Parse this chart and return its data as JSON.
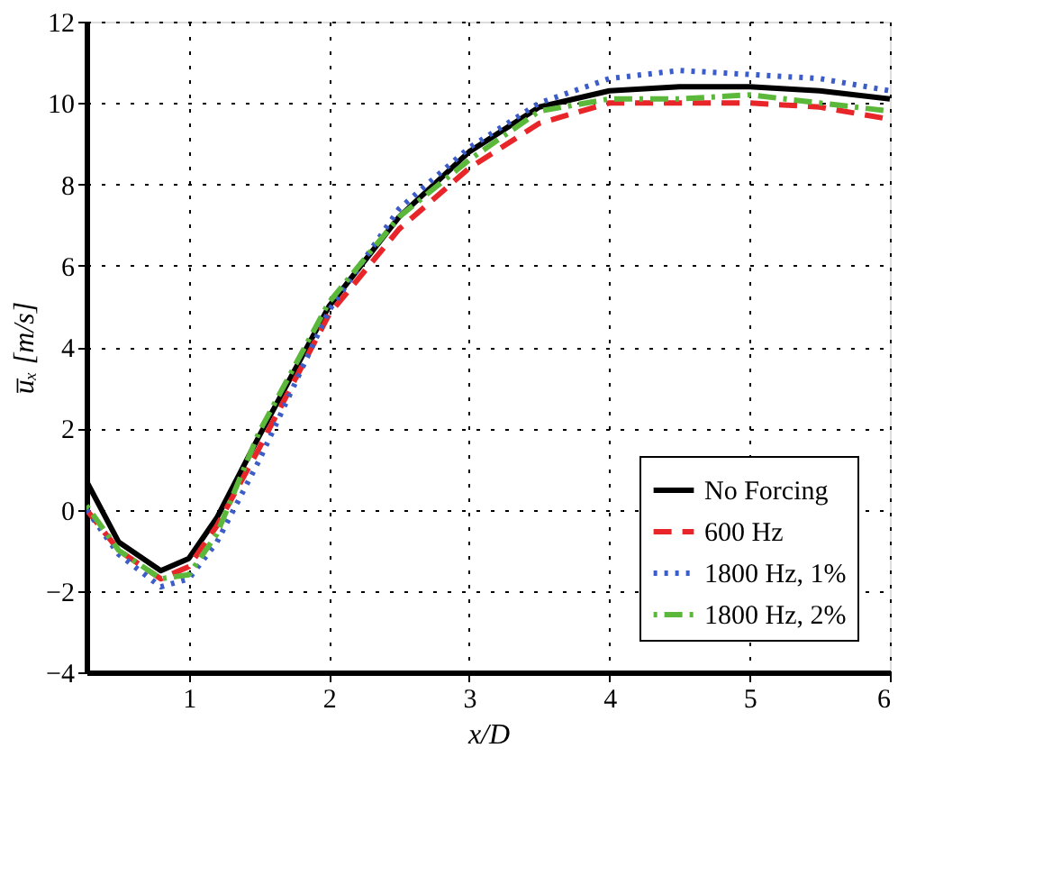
{
  "chart_data": {
    "type": "line",
    "xlabel": "x/D",
    "ylabel": "u̅ₓ [m/s]",
    "x": [
      0.27,
      0.5,
      0.8,
      1.0,
      1.2,
      1.5,
      2.0,
      2.5,
      3.0,
      3.5,
      4.0,
      4.5,
      5.0,
      5.5,
      6.0
    ],
    "series": [
      {
        "name": "No Forcing",
        "color": "#000000",
        "line_style": "solid",
        "values": [
          0.7,
          -0.8,
          -1.5,
          -1.2,
          -0.2,
          1.8,
          5.0,
          7.2,
          8.8,
          9.9,
          10.3,
          10.4,
          10.4,
          10.3,
          10.1
        ]
      },
      {
        "name": "600 Hz",
        "color": "#e8262a",
        "line_style": "dashed",
        "values": [
          0.0,
          -1.0,
          -1.7,
          -1.4,
          -0.4,
          1.5,
          4.8,
          6.9,
          8.4,
          9.5,
          10.0,
          10.0,
          10.0,
          9.9,
          9.6
        ]
      },
      {
        "name": "1800 Hz, 1%",
        "color": "#3c5cc8",
        "line_style": "dotted",
        "values": [
          0.0,
          -1.1,
          -1.9,
          -1.7,
          -0.8,
          1.2,
          4.9,
          7.4,
          8.9,
          10.0,
          10.6,
          10.8,
          10.7,
          10.6,
          10.3
        ]
      },
      {
        "name": "1800 Hz, 2%",
        "color": "#5cb83a",
        "line_style": "dashdot",
        "values": [
          0.1,
          -1.0,
          -1.7,
          -1.6,
          -0.6,
          1.9,
          5.1,
          7.2,
          8.6,
          9.8,
          10.1,
          10.1,
          10.2,
          10.0,
          9.8
        ]
      }
    ],
    "xlim": [
      0.27,
      6
    ],
    "xticks": [
      1,
      2,
      3,
      4,
      5,
      6
    ],
    "ylim": [
      -4,
      12
    ],
    "yticks": [
      -4,
      -2,
      0,
      2,
      4,
      6,
      8,
      10,
      12
    ],
    "grid": true,
    "legend": "bottom right"
  }
}
